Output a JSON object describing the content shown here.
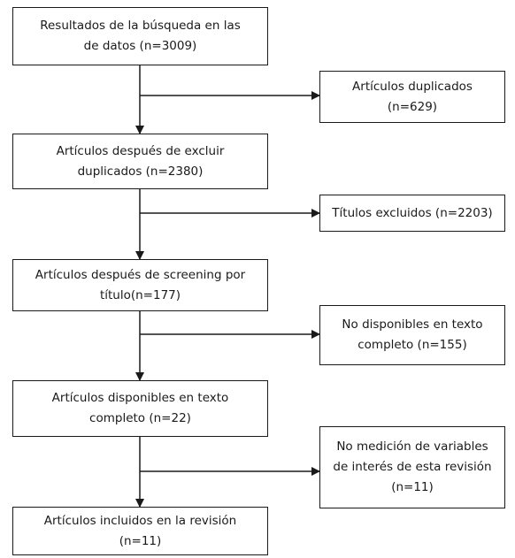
{
  "flow": {
    "main_steps": [
      {
        "lines": [
          "Resultados de la búsqueda en las",
          "de datos (n=3009)"
        ]
      },
      {
        "lines": [
          "Artículos después de excluir",
          "duplicados (n=2380)"
        ]
      },
      {
        "lines": [
          "Artículos después de screening por",
          "título(n=177)"
        ]
      },
      {
        "lines": [
          "Artículos disponibles en texto",
          "completo (n=22)"
        ]
      },
      {
        "lines": [
          "Artículos incluidos en la revisión",
          "(n=11)"
        ]
      }
    ],
    "exclusions": [
      {
        "lines": [
          "Artículos duplicados",
          "(n=629)"
        ]
      },
      {
        "lines": [
          "Títulos excluidos (n=2203)"
        ]
      },
      {
        "lines": [
          "No disponibles en texto",
          "completo (n=155)"
        ]
      },
      {
        "lines": [
          "No medición de variables",
          "de interés de esta revisión",
          "(n=11)"
        ]
      }
    ]
  },
  "colors": {
    "stroke": "#1a1a1a",
    "background": "#ffffff"
  }
}
